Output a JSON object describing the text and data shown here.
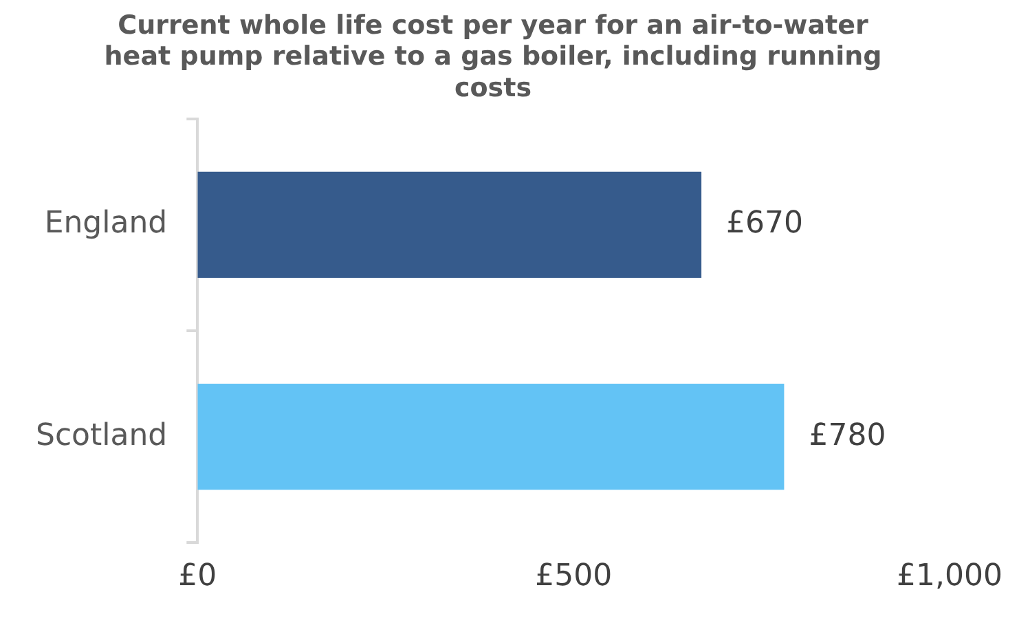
{
  "chart_data": {
    "type": "bar",
    "orientation": "horizontal",
    "title": "Current whole life cost per year for an air-to-water heat pump relative to a gas boiler, including running costs",
    "categories": [
      "England",
      "Scotland"
    ],
    "values": [
      670,
      780
    ],
    "colors": [
      "#365b8c",
      "#63c3f5"
    ],
    "value_labels": [
      "£670",
      "£780"
    ],
    "xlim": [
      0,
      1000
    ],
    "xticks": [
      {
        "value": 0,
        "label": "£0"
      },
      {
        "value": 500,
        "label": "£500"
      },
      {
        "value": 1000,
        "label": "£1,000"
      }
    ],
    "grid": false,
    "legend": false
  }
}
